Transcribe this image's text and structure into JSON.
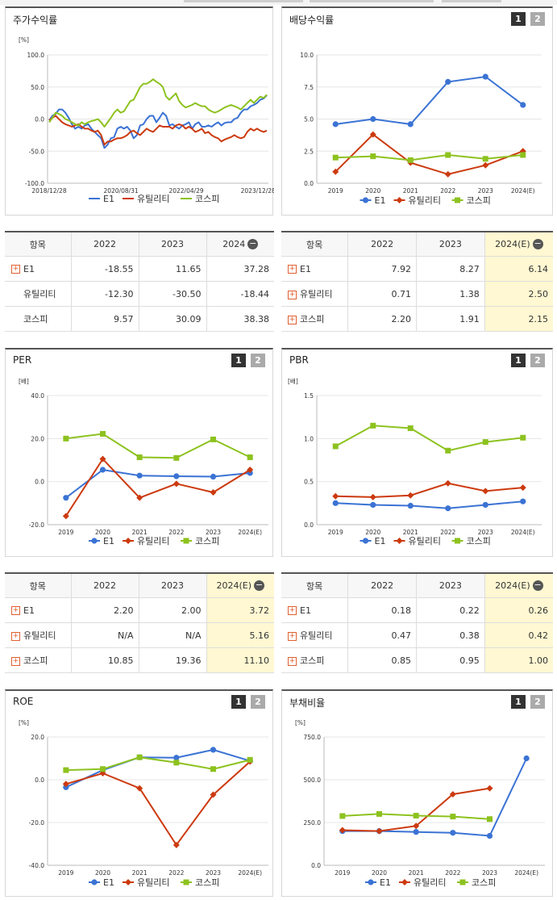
{
  "charts": [
    {
      "key": "stock",
      "title": "주가수익률",
      "has_buttons": false,
      "unit": "[%]",
      "chart_data": {
        "type": "line",
        "ylim": [
          -100,
          100
        ],
        "yticks": [
          "100.0",
          "50.0",
          "0.0",
          "-50.0",
          "-100.0"
        ],
        "ytick_values": [
          100,
          50,
          0,
          -50,
          -100
        ],
        "xticks": [
          "2018/12/28",
          "2020/08/31",
          "2022/04/29",
          "2023/12/28"
        ],
        "series": [
          {
            "name": "E1",
            "color": "#3b73d4",
            "marker": "none",
            "values": [
              -2,
              5,
              8,
              15,
              15,
              10,
              2,
              -8,
              -15,
              -12,
              -15,
              -10,
              -8,
              -15,
              -20,
              -25,
              -30,
              -45,
              -40,
              -30,
              -28,
              -15,
              -12,
              -15,
              -12,
              -18,
              -30,
              -25,
              -10,
              -8,
              0,
              5,
              5,
              -5,
              2,
              10,
              5,
              -10,
              -8,
              -12,
              -15,
              -10,
              -8,
              -5,
              -15,
              -8,
              -5,
              -12,
              -12,
              -10,
              -12,
              -8,
              -5,
              -10,
              -6,
              -5,
              -5,
              0,
              2,
              10,
              15,
              15,
              20,
              22,
              25,
              30,
              32,
              37
            ]
          },
          {
            "name": "유틸리티",
            "color": "#cc3a0f",
            "marker": "none",
            "values": [
              -2,
              2,
              5,
              0,
              -5,
              -8,
              -10,
              -12,
              -10,
              -8,
              -12,
              -15,
              -15,
              -18,
              -20,
              -18,
              -25,
              -40,
              -35,
              -35,
              -32,
              -30,
              -30,
              -28,
              -25,
              -20,
              -18,
              -22,
              -25,
              -20,
              -15,
              -18,
              -20,
              -15,
              -10,
              -12,
              -12,
              -12,
              -15,
              -10,
              -8,
              -10,
              -15,
              -12,
              -15,
              -20,
              -18,
              -15,
              -22,
              -20,
              -25,
              -28,
              -30,
              -35,
              -32,
              -30,
              -28,
              -25,
              -28,
              -30,
              -28,
              -20,
              -15,
              -18,
              -15,
              -18,
              -20,
              -18
            ]
          },
          {
            "name": "코스피",
            "color": "#8dc21f",
            "marker": "none",
            "values": [
              -5,
              2,
              10,
              8,
              5,
              0,
              -2,
              -5,
              -8,
              -10,
              -5,
              -8,
              -5,
              -3,
              -2,
              0,
              -5,
              -12,
              -5,
              2,
              10,
              15,
              10,
              12,
              20,
              28,
              30,
              40,
              50,
              55,
              55,
              58,
              62,
              58,
              55,
              50,
              35,
              30,
              35,
              40,
              28,
              22,
              18,
              20,
              22,
              25,
              22,
              20,
              20,
              15,
              12,
              10,
              12,
              15,
              18,
              20,
              22,
              20,
              18,
              15,
              20,
              25,
              30,
              25,
              30,
              35,
              33,
              38
            ]
          }
        ]
      },
      "legend": [
        "E1",
        "유틸리티",
        "코스피"
      ]
    },
    {
      "key": "dividend",
      "title": "배당수익률",
      "has_buttons": true,
      "unit": "",
      "chart_data": {
        "type": "line",
        "ylim": [
          0,
          10
        ],
        "yticks": [
          "10.0",
          "7.5",
          "5.0",
          "2.5",
          "0.0"
        ],
        "ytick_values": [
          10,
          7.5,
          5,
          2.5,
          0
        ],
        "categories": [
          "2019",
          "2020",
          "2021",
          "2022",
          "2023",
          "2024(E)"
        ],
        "series": [
          {
            "name": "E1",
            "color": "#3b73d4",
            "marker": "circle",
            "values": [
              4.6,
              5.0,
              4.6,
              7.9,
              8.3,
              6.1
            ]
          },
          {
            "name": "유틸리티",
            "color": "#cc3a0f",
            "marker": "diamond",
            "values": [
              0.9,
              3.8,
              1.6,
              0.7,
              1.4,
              2.5
            ]
          },
          {
            "name": "코스피",
            "color": "#8dc21f",
            "marker": "square",
            "values": [
              2.0,
              2.1,
              1.8,
              2.2,
              1.9,
              2.2
            ]
          }
        ]
      },
      "legend": [
        "E1",
        "유틸리티",
        "코스피"
      ]
    },
    {
      "key": "per",
      "title": "PER",
      "has_buttons": true,
      "unit": "[배]",
      "chart_data": {
        "type": "line",
        "ylim": [
          -20,
          40
        ],
        "yticks": [
          "40.0",
          "20.0",
          "0.0",
          "-20.0"
        ],
        "ytick_values": [
          40,
          20,
          0,
          -20
        ],
        "categories": [
          "2019",
          "2020",
          "2021",
          "2022",
          "2023",
          "2024(E)"
        ],
        "series": [
          {
            "name": "E1",
            "color": "#3b73d4",
            "marker": "circle",
            "values": [
              -7.5,
              5.5,
              2.8,
              2.5,
              2.3,
              4.0
            ]
          },
          {
            "name": "유틸리티",
            "color": "#cc3a0f",
            "marker": "diamond",
            "values": [
              -16,
              10.5,
              -7.5,
              -1.0,
              -5.0,
              5.5
            ]
          },
          {
            "name": "코스피",
            "color": "#8dc21f",
            "marker": "square",
            "values": [
              20.0,
              22.2,
              11.3,
              11.0,
              19.6,
              11.3
            ]
          }
        ]
      },
      "legend": [
        "E1",
        "유틸리티",
        "코스피"
      ]
    },
    {
      "key": "pbr",
      "title": "PBR",
      "has_buttons": true,
      "unit": "[배]",
      "chart_data": {
        "type": "line",
        "ylim": [
          0,
          1.5
        ],
        "yticks": [
          "1.5",
          "1.0",
          "0.5",
          "0.0"
        ],
        "ytick_values": [
          1.5,
          1.0,
          0.5,
          0
        ],
        "categories": [
          "2019",
          "2020",
          "2021",
          "2022",
          "2023",
          "2024(E)"
        ],
        "series": [
          {
            "name": "E1",
            "color": "#3b73d4",
            "marker": "circle",
            "values": [
              0.25,
              0.23,
              0.22,
              0.19,
              0.23,
              0.27
            ]
          },
          {
            "name": "유틸리티",
            "color": "#cc3a0f",
            "marker": "diamond",
            "values": [
              0.33,
              0.32,
              0.34,
              0.48,
              0.39,
              0.43
            ]
          },
          {
            "name": "코스피",
            "color": "#8dc21f",
            "marker": "square",
            "values": [
              0.91,
              1.15,
              1.12,
              0.86,
              0.96,
              1.01
            ]
          }
        ]
      },
      "legend": [
        "E1",
        "유틸리티",
        "코스피"
      ]
    },
    {
      "key": "roe",
      "title": "ROE",
      "has_buttons": true,
      "unit": "[%]",
      "chart_data": {
        "type": "line",
        "ylim": [
          -40,
          20
        ],
        "yticks": [
          "20.0",
          "0.0",
          "-20.0",
          "-40.0"
        ],
        "ytick_values": [
          20,
          0,
          -20,
          -40
        ],
        "categories": [
          "2019",
          "2020",
          "2021",
          "2022",
          "2023",
          "2024(E)"
        ],
        "series": [
          {
            "name": "E1",
            "color": "#3b73d4",
            "marker": "circle",
            "values": [
              -3.5,
              4.5,
              10.5,
              10.3,
              14.0,
              8.8
            ]
          },
          {
            "name": "유틸리티",
            "color": "#cc3a0f",
            "marker": "diamond",
            "values": [
              -2.0,
              3.0,
              -4.0,
              -30.5,
              -7.0,
              8.5
            ]
          },
          {
            "name": "코스피",
            "color": "#8dc21f",
            "marker": "square",
            "values": [
              4.5,
              5.0,
              10.5,
              8.0,
              5.0,
              9.3
            ]
          }
        ]
      },
      "legend": [
        "E1",
        "유틸리티",
        "코스피"
      ]
    },
    {
      "key": "debt",
      "title": "부채비율",
      "has_buttons": true,
      "unit": "[%]",
      "chart_data": {
        "type": "line",
        "ylim": [
          0,
          750
        ],
        "yticks": [
          "750.0",
          "500.0",
          "250.0",
          "0.0"
        ],
        "ytick_values": [
          750,
          500,
          250,
          0
        ],
        "categories": [
          "2019",
          "2020",
          "2021",
          "2022",
          "2023",
          "2024(E)"
        ],
        "series": [
          {
            "name": "E1",
            "color": "#3b73d4",
            "marker": "circle",
            "values": [
              200,
              200,
              195,
              190,
              172,
              625
            ]
          },
          {
            "name": "유틸리티",
            "color": "#cc3a0f",
            "marker": "diamond",
            "values": [
              205,
              200,
              230,
              415,
              450,
              null
            ]
          },
          {
            "name": "코스피",
            "color": "#8dc21f",
            "marker": "square",
            "values": [
              288,
              300,
              290,
              285,
              270,
              null
            ]
          }
        ]
      },
      "legend": [
        "E1",
        "유틸리티",
        "코스피"
      ]
    }
  ],
  "tables": {
    "stock": {
      "header": [
        "항목",
        "2022",
        "2023",
        "2024"
      ],
      "rows": [
        {
          "name": "E1",
          "plus": true,
          "values": [
            "-18.55",
            "11.65",
            "37.28"
          ]
        },
        {
          "name": "유틸리티",
          "plus": false,
          "values": [
            "-12.30",
            "-30.50",
            "-18.44"
          ]
        },
        {
          "name": "코스피",
          "plus": false,
          "values": [
            "9.57",
            "30.09",
            "38.38"
          ]
        }
      ]
    },
    "dividend": {
      "header": [
        "항목",
        "2022",
        "2023",
        "2024(E)"
      ],
      "rows": [
        {
          "name": "E1",
          "plus": true,
          "values": [
            "7.92",
            "8.27",
            "6.14"
          ]
        },
        {
          "name": "유틸리티",
          "plus": true,
          "values": [
            "0.71",
            "1.38",
            "2.50"
          ]
        },
        {
          "name": "코스피",
          "plus": true,
          "values": [
            "2.20",
            "1.91",
            "2.15"
          ]
        }
      ]
    },
    "per": {
      "header": [
        "항목",
        "2022",
        "2023",
        "2024(E)"
      ],
      "rows": [
        {
          "name": "E1",
          "plus": true,
          "values": [
            "2.20",
            "2.00",
            "3.72"
          ]
        },
        {
          "name": "유틸리티",
          "plus": true,
          "values": [
            "N/A",
            "N/A",
            "5.16"
          ]
        },
        {
          "name": "코스피",
          "plus": true,
          "values": [
            "10.85",
            "19.36",
            "11.10"
          ]
        }
      ]
    },
    "pbr": {
      "header": [
        "항목",
        "2022",
        "2023",
        "2024(E)"
      ],
      "rows": [
        {
          "name": "E1",
          "plus": true,
          "values": [
            "0.18",
            "0.22",
            "0.26"
          ]
        },
        {
          "name": "유틸리티",
          "plus": true,
          "values": [
            "0.47",
            "0.38",
            "0.42"
          ]
        },
        {
          "name": "코스피",
          "plus": true,
          "values": [
            "0.85",
            "0.95",
            "1.00"
          ]
        }
      ]
    }
  },
  "buttons": [
    "1",
    "2"
  ]
}
